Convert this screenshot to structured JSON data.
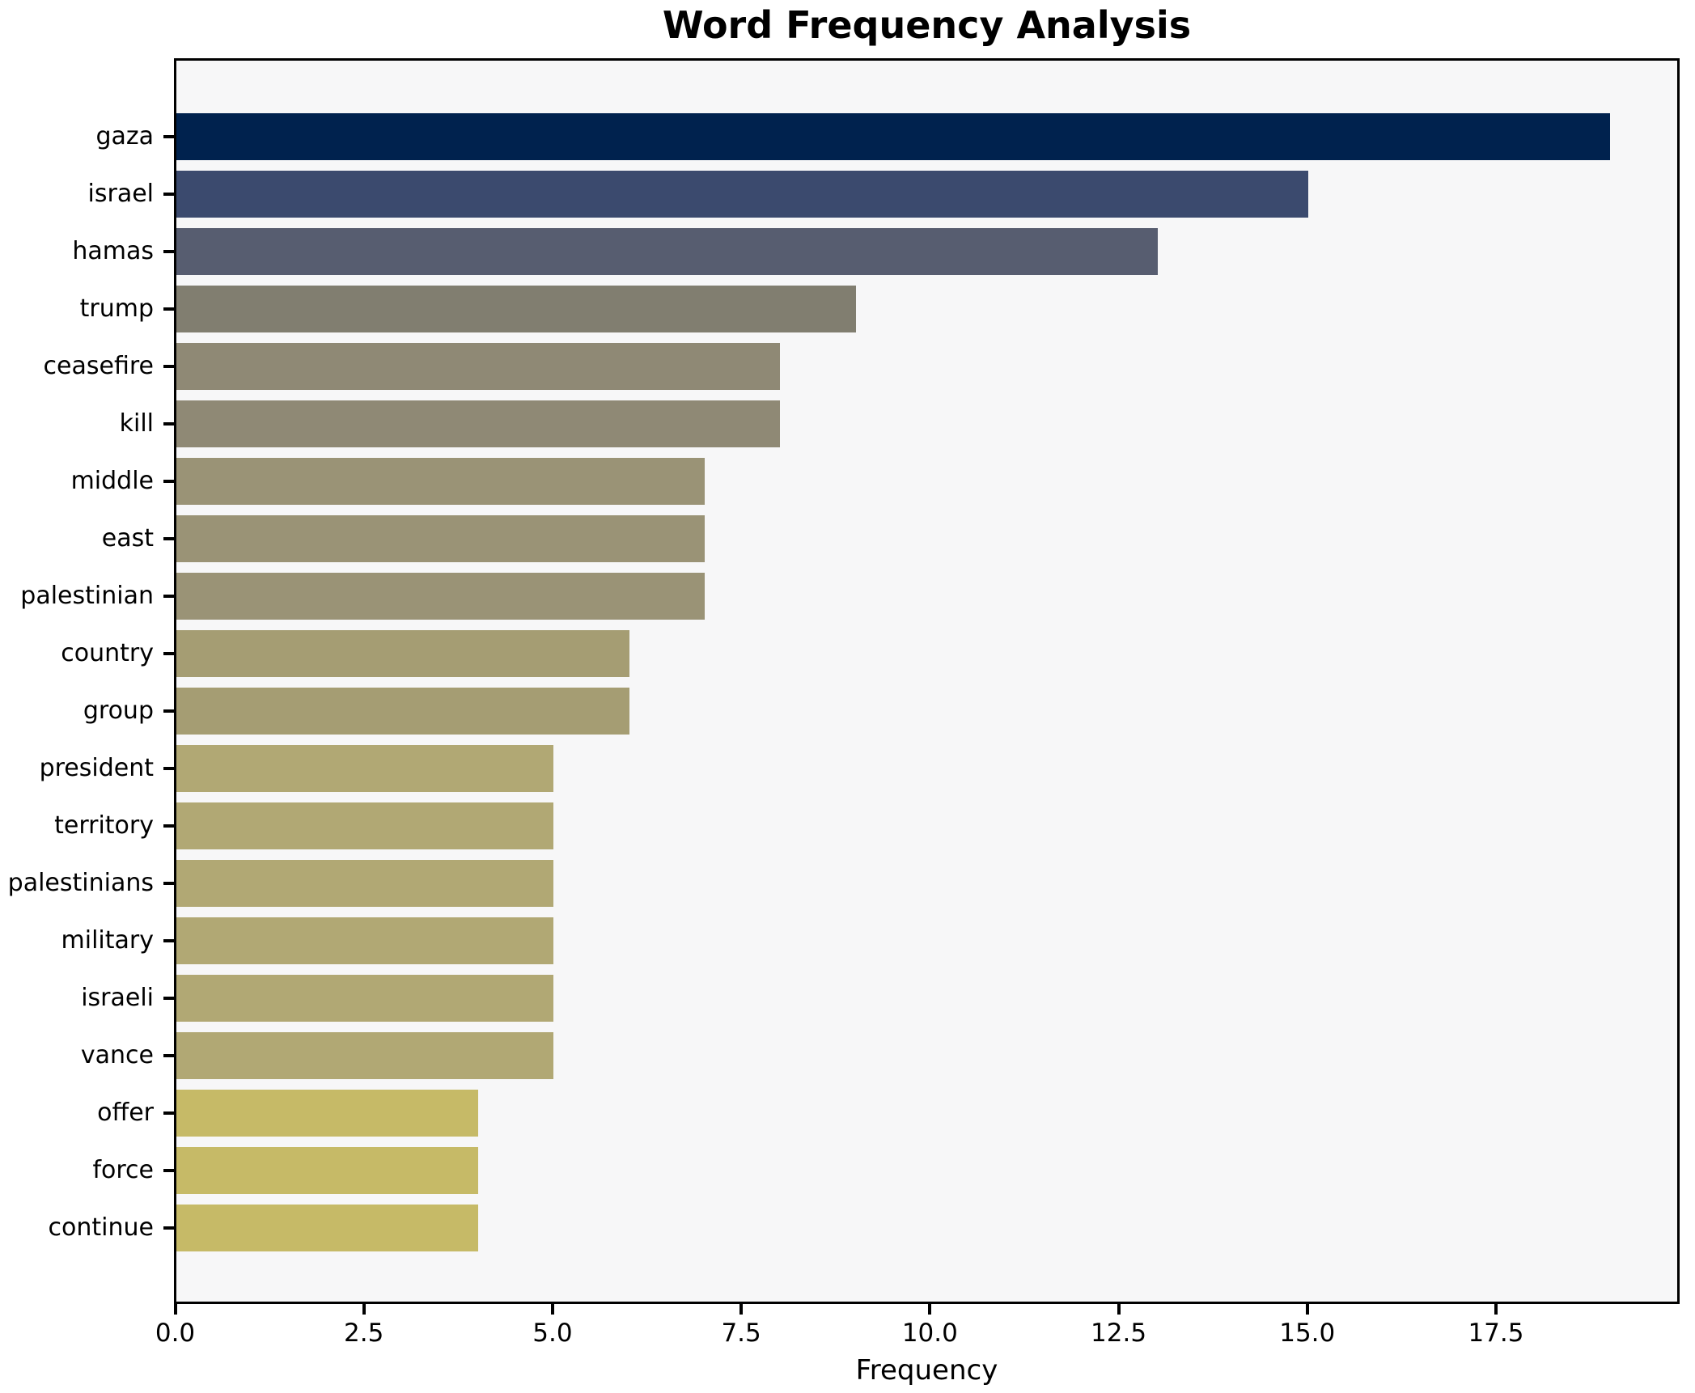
{
  "figure": {
    "background": "#ffffff",
    "plot_background": "#f7f7f8",
    "spine_color": "#000000",
    "text_color": "#000000"
  },
  "chart_data": {
    "type": "bar",
    "orientation": "horizontal",
    "title": "Word Frequency Analysis",
    "xlabel": "Frequency",
    "ylabel": "",
    "categories": [
      "gaza",
      "israel",
      "hamas",
      "trump",
      "ceasefire",
      "kill",
      "middle",
      "east",
      "palestinian",
      "country",
      "group",
      "president",
      "territory",
      "palestinians",
      "military",
      "israeli",
      "vance",
      "offer",
      "force",
      "continue"
    ],
    "values": [
      19,
      15,
      13,
      9,
      8,
      8,
      7,
      7,
      7,
      6,
      6,
      5,
      5,
      5,
      5,
      5,
      5,
      4,
      4,
      4
    ],
    "bar_colors": [
      "#00224e",
      "#3b4a6e",
      "#575d70",
      "#817e70",
      "#8f8975",
      "#8f8975",
      "#9a9376",
      "#9a9376",
      "#9a9376",
      "#a59d73",
      "#a59d73",
      "#b1a874",
      "#b1a874",
      "#b1a874",
      "#b1a874",
      "#b1a874",
      "#b1a874",
      "#c6ba67",
      "#c6ba67",
      "#c6ba67"
    ],
    "xlim": [
      0,
      19.95
    ],
    "x_ticks": [
      0.0,
      2.5,
      5.0,
      7.5,
      10.0,
      12.5,
      15.0,
      17.5
    ],
    "x_tick_labels": [
      "0.0",
      "2.5",
      "5.0",
      "7.5",
      "10.0",
      "12.5",
      "15.0",
      "17.5"
    ],
    "grid": false,
    "legend": null,
    "colormap_note": "cividis-style gradient dark-navy (high freq) to khaki (low freq)"
  }
}
